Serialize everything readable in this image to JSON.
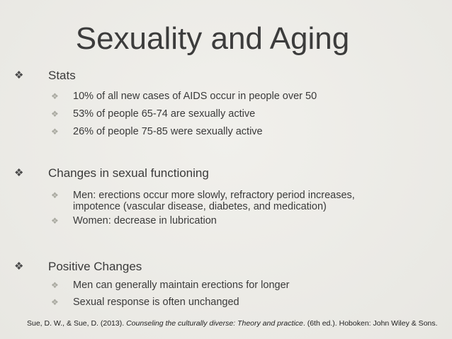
{
  "slide": {
    "title": "Sexuality and Aging",
    "sections": [
      {
        "heading": "Stats",
        "items": [
          "10% of all new cases of AIDS occur in people over 50",
          "53% of people 65-74 are sexually active",
          "26% of people 75-85 were sexually active"
        ]
      },
      {
        "heading": "Changes in sexual functioning",
        "items": [
          "Men: erections occur more slowly, refractory period increases, impotence (vascular disease, diabetes, and medication)",
          "Women: decrease in lubrication"
        ]
      },
      {
        "heading": "Positive Changes",
        "items": [
          "Men can generally maintain erections for longer",
          "Sexual response is often unchanged"
        ]
      }
    ],
    "citation": {
      "before": "Sue, D. W., & Sue, D. (2013). ",
      "italic": "Counseling the culturally diverse: Theory and practice",
      "after": ". (6th ed.). Hoboken: John Wiley & Sons."
    }
  }
}
